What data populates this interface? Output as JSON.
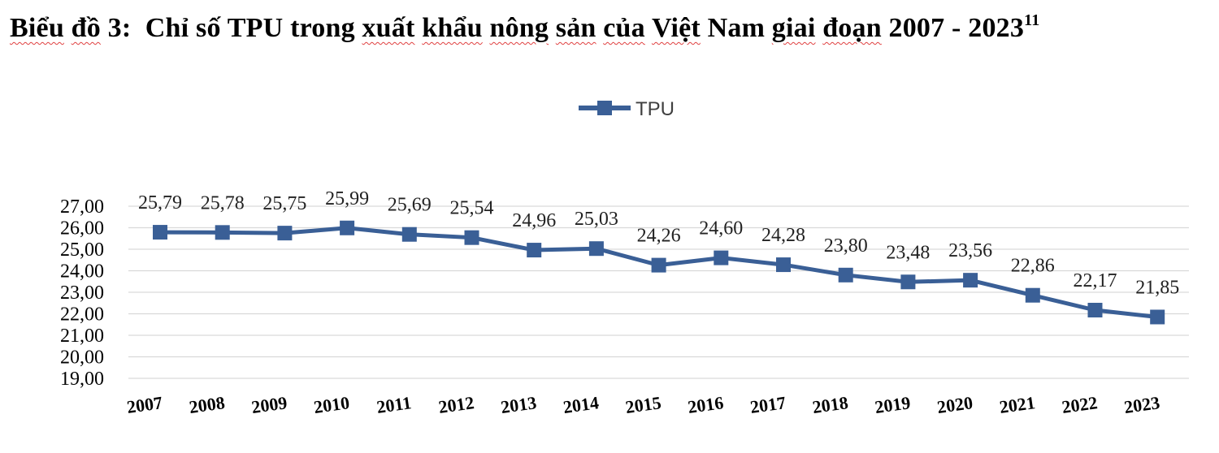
{
  "title": {
    "parts": [
      "Biểu",
      "đồ",
      "3:",
      "Chỉ",
      "số",
      "TPU",
      "trong",
      "xuất",
      "khẩu",
      "nông",
      "sản",
      "của",
      "Việt",
      "Nam",
      "giai",
      "đoạn",
      "2007",
      "-",
      "2023"
    ],
    "footnote": "11"
  },
  "colors": {
    "series": "#3A5F96",
    "grid": "#D9D9D9"
  },
  "chart_data": {
    "type": "line",
    "x": [
      "2007",
      "2008",
      "2009",
      "2010",
      "2011",
      "2012",
      "2013",
      "2014",
      "2015",
      "2016",
      "2017",
      "2018",
      "2019",
      "2020",
      "2021",
      "2022",
      "2023"
    ],
    "series": [
      {
        "name": "TPU",
        "values": [
          25.79,
          25.78,
          25.75,
          25.99,
          25.69,
          25.54,
          24.96,
          25.03,
          24.26,
          24.6,
          24.28,
          23.8,
          23.48,
          23.56,
          22.86,
          22.17,
          21.85
        ],
        "labels": [
          "25,79",
          "25,78",
          "25,75",
          "25,99",
          "25,69",
          "25,54",
          "24,96",
          "25,03",
          "24,26",
          "24,60",
          "24,28",
          "23,80",
          "23,48",
          "23,56",
          "22,86",
          "22,17",
          "21,85"
        ]
      }
    ],
    "ylim": [
      19,
      27
    ],
    "yticks": [
      "19,00",
      "20,00",
      "21,00",
      "22,00",
      "23,00",
      "24,00",
      "25,00",
      "26,00",
      "27,00"
    ],
    "grid": true,
    "legend": "top-center",
    "marker": "square"
  }
}
